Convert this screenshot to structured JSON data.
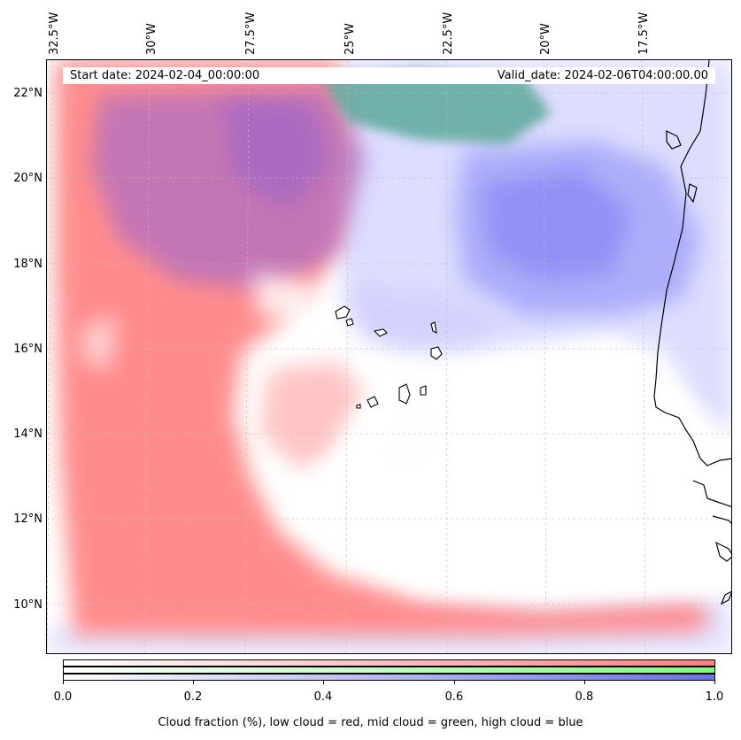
{
  "header": {
    "start_date": "Start date: 2024-02-04_00:00:00",
    "valid_date": "Valid_date: 2024-02-06T04:00:00.00"
  },
  "axes": {
    "longitude_labels": [
      "32.5°W",
      "30°W",
      "27.5°W",
      "25°W",
      "22.5°W",
      "20°W",
      "17.5°W"
    ],
    "latitude_labels": [
      "22°N",
      "20°N",
      "18°N",
      "16°N",
      "14°N",
      "12°N",
      "10°N"
    ]
  },
  "colorbar": {
    "ticks": [
      "0.0",
      "0.2",
      "0.4",
      "0.6",
      "0.8",
      "1.0"
    ],
    "label": "Cloud fraction (%), low cloud = red, mid cloud = green, high cloud = blue",
    "colors": {
      "low": "#ff7f7f",
      "mid": "#7fff7f",
      "high": "#6f6fe8"
    }
  }
}
